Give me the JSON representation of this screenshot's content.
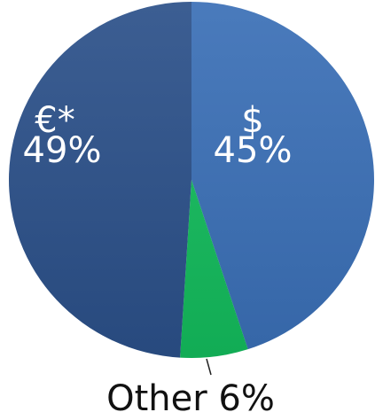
{
  "chart_data": {
    "type": "pie",
    "categories": [
      "$",
      "Other",
      "€*"
    ],
    "values": [
      45,
      6,
      49
    ],
    "value_labels": [
      "45%",
      "6%",
      "49%"
    ],
    "colors": [
      "#3a6fb6",
      "#13bb5c",
      "#2b5089"
    ]
  }
}
